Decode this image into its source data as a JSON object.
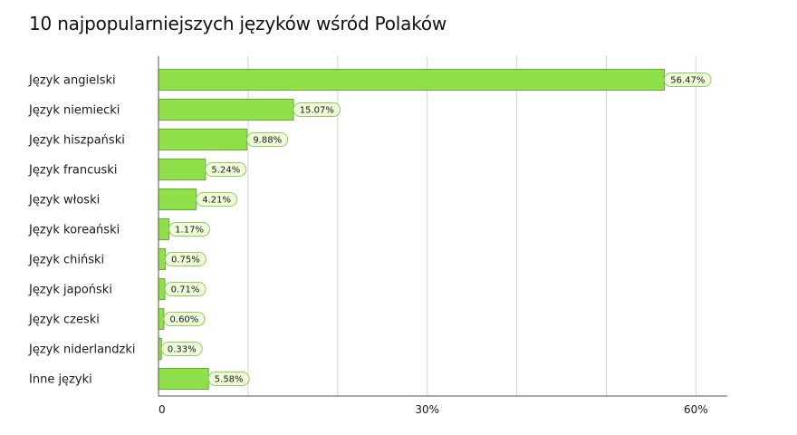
{
  "title": "10 najpopularniejszych języków wśród Polaków",
  "colors": {
    "bar_fill": "#8fe04a",
    "bar_stroke": "#63b12b",
    "label_fill": "#edfbd9",
    "label_stroke": "#8fcf5e",
    "gridline": "#d4d4d4",
    "axis": "#555555"
  },
  "chart_data": {
    "type": "bar",
    "orientation": "horizontal",
    "title": "10 najpopularniejszych języków wśród Polaków",
    "xlabel": "",
    "ylabel": "",
    "categories": [
      "Język angielski",
      "Język niemiecki",
      "Język hiszpański",
      "Język francuski",
      "Język włoski",
      "Język koreański",
      "Język chiński",
      "Język japoński",
      "Język czeski",
      "Język niderlandzki",
      "Inne języki"
    ],
    "values": [
      56.47,
      15.07,
      9.88,
      5.24,
      4.21,
      1.17,
      0.75,
      0.71,
      0.6,
      0.33,
      5.58
    ],
    "data_labels": [
      "56.47%",
      "15.07%",
      "9.88%",
      "5.24%",
      "4.21%",
      "1.17%",
      "0.75%",
      "0.71%",
      "0.60%",
      "0.33%",
      "5.58%"
    ],
    "xlim": [
      0,
      63.5
    ],
    "ticks": [
      0,
      30,
      60
    ],
    "tick_labels": [
      "0",
      "30%",
      "60%"
    ],
    "grid": true,
    "legend": "none"
  }
}
